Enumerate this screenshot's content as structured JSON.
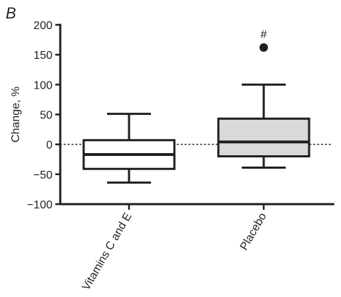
{
  "panel_label": "B",
  "chart_data": {
    "type": "box",
    "title": "",
    "xlabel": "",
    "ylabel": "Change, %",
    "ylim": [
      -100,
      200
    ],
    "yticks": [
      -100,
      -50,
      0,
      50,
      100,
      150,
      200
    ],
    "ytick_labels": [
      "−100",
      "−50",
      "0",
      "50",
      "100",
      "150",
      "200"
    ],
    "reference_line": {
      "y": 0,
      "style": "dotted"
    },
    "categories": [
      "Vitamins C and E",
      "Placebo"
    ],
    "boxes": [
      {
        "name": "Vitamins C and E",
        "whisker_low": -64,
        "q1": -41,
        "median": -17,
        "q3": 7,
        "whisker_high": 51,
        "fill": "#ffffff",
        "outliers": []
      },
      {
        "name": "Placebo",
        "whisker_low": -39,
        "q1": -20,
        "median": 4,
        "q3": 43,
        "whisker_high": 100,
        "fill": "#d9d9d9",
        "outliers": [
          162
        ]
      }
    ],
    "annotations": [
      {
        "category": "Placebo",
        "text": "#",
        "near_value": 185
      }
    ],
    "grid": false
  }
}
